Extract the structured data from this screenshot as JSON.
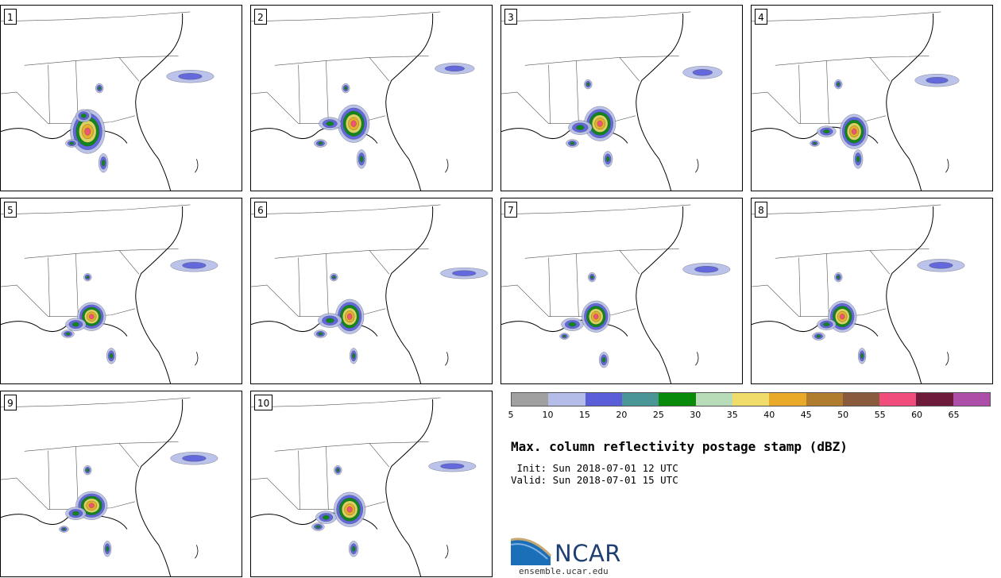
{
  "panels": [
    {
      "label": "1"
    },
    {
      "label": "2"
    },
    {
      "label": "3"
    },
    {
      "label": "4"
    },
    {
      "label": "5"
    },
    {
      "label": "6"
    },
    {
      "label": "7"
    },
    {
      "label": "8"
    },
    {
      "label": "9"
    },
    {
      "label": "10"
    }
  ],
  "colorbar": {
    "colors": [
      "#a0a0a0",
      "#b4bde8",
      "#5a5fd9",
      "#4a9696",
      "#0a8a0a",
      "#b7dcb7",
      "#f0dc6a",
      "#e8aa28",
      "#b07c2e",
      "#8a5a3c",
      "#f04c7c",
      "#6e1a3a",
      "#ad4ea9"
    ],
    "ticks": [
      "5",
      "10",
      "15",
      "20",
      "25",
      "30",
      "35",
      "40",
      "45",
      "50",
      "55",
      "60",
      "65"
    ]
  },
  "title": "Max. column reflectivity postage stamp (dBZ)",
  "init": " Init: Sun 2018-07-01 12 UTC",
  "valid": "Valid: Sun 2018-07-01 15 UTC",
  "logo": {
    "name": "NCAR"
  },
  "site": "ensemble.ucar.edu"
}
